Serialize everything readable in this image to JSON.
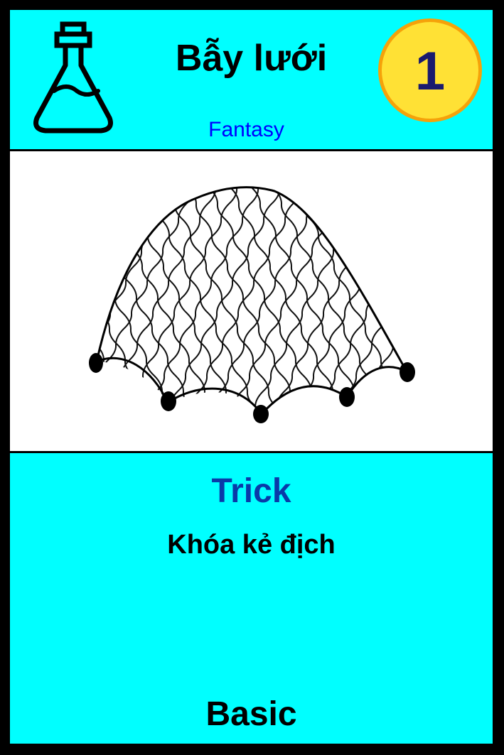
{
  "card": {
    "title": "Bẫy lưới",
    "subtitle": "Fantasy",
    "cost": "1",
    "type": "Trick",
    "effect": "Khóa kẻ địch",
    "rarity": "Basic",
    "icon": "flask-icon",
    "art": "net-image"
  },
  "colors": {
    "background": "#00ffff",
    "border": "#000000",
    "badge_fill": "#ffe135",
    "badge_ring": "#f5a20a",
    "cost_text": "#1a1a6e",
    "subtitle_text": "#0000ff",
    "type_text": "#0a3aa8"
  }
}
